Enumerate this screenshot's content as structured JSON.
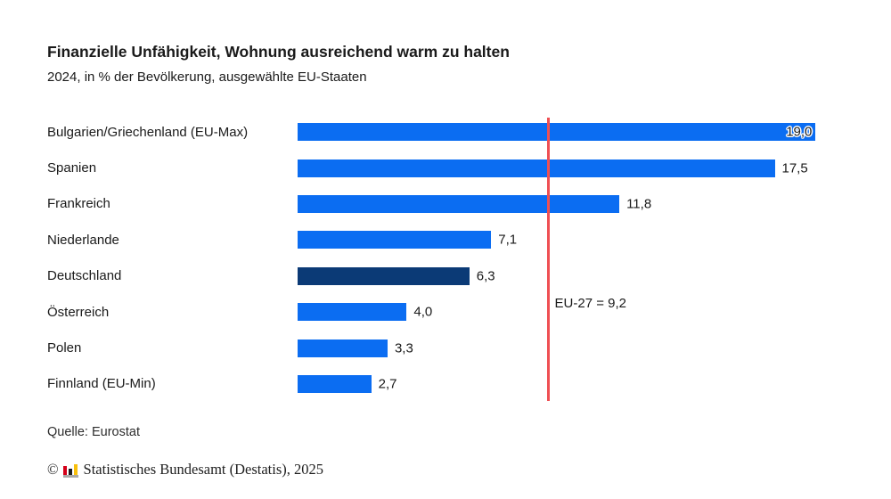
{
  "header": {
    "title": "Finanzielle Unfähigkeit, Wohnung ausreichend warm zu halten",
    "subtitle": "2024, in % der Bevölkerung, ausgewählte EU-Staaten"
  },
  "chart_data": {
    "type": "bar",
    "orientation": "horizontal",
    "title": "Finanzielle Unfähigkeit, Wohnung ausreichend warm zu halten",
    "subtitle": "2024, in % der Bevölkerung, ausgewählte EU-Staaten",
    "unit": "% der Bevölkerung",
    "categories": [
      "Bulgarien/Griechenland (EU-Max)",
      "Spanien",
      "Frankreich",
      "Niederlande",
      "Deutschland",
      "Österreich",
      "Polen",
      "Finnland (EU-Min)"
    ],
    "values": [
      19.0,
      17.5,
      11.8,
      7.1,
      6.3,
      4.0,
      3.3,
      2.7
    ],
    "value_labels": [
      "19,0",
      "17,5",
      "11,8",
      "7,1",
      "6,3",
      "4,0",
      "3,3",
      "2,7"
    ],
    "value_label_inside": [
      true,
      false,
      false,
      false,
      false,
      false,
      false,
      false
    ],
    "highlight_index": 4,
    "bar_color": "#0b6df2",
    "highlight_color": "#0b3a76",
    "xlim": [
      0,
      19.6
    ],
    "grid": "off",
    "legend": "none",
    "reference_line": {
      "label": "EU-27 = 9,2",
      "value": 9.2,
      "color": "#ef4f53"
    }
  },
  "footer": {
    "source": "Quelle: Eurostat",
    "copyright_symbol": "©",
    "copyright_text": "Statistisches Bundesamt (Destatis), 2025",
    "logo_name": "destatis-bar-chart-logo"
  }
}
